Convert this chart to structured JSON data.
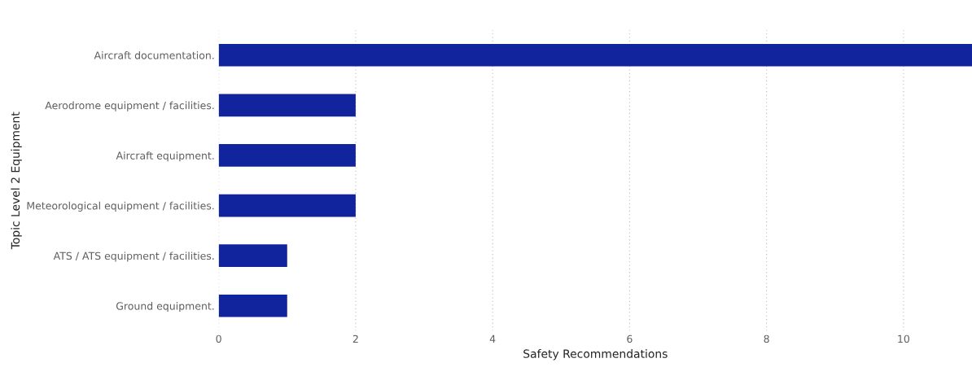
{
  "chart_data": {
    "type": "bar",
    "orientation": "horizontal",
    "xlabel": "Safety Recommendations",
    "ylabel": "Topic Level 2 Equipment",
    "categories": [
      "Aircraft documentation.",
      "Aerodrome equipment / facilities.",
      "Aircraft equipment.",
      "Meteorological equipment / facilities.",
      "ATS / ATS equipment / facilities.",
      "Ground equipment."
    ],
    "values": [
      11,
      2,
      2,
      2,
      1,
      1
    ],
    "color": "#12239e",
    "xlim": [
      0,
      11
    ],
    "xticks": [
      0,
      2,
      4,
      6,
      8,
      10
    ],
    "grid": "x"
  }
}
